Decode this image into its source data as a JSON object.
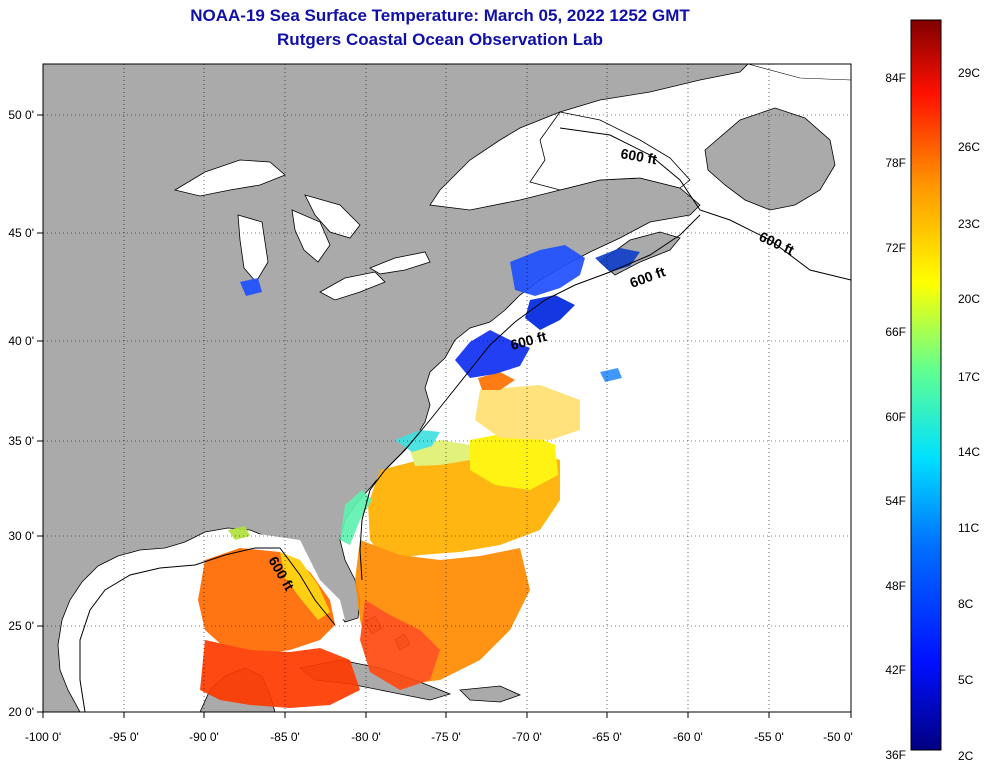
{
  "title": "NOAA-19 Sea Surface Temperature:  March 05, 2022 1252 GMT",
  "subtitle": "Rutgers Coastal Ocean Observation Lab",
  "map": {
    "lon_labels": [
      "-100 0'",
      "-95 0'",
      "-90 0'",
      "-85 0'",
      "-80 0'",
      "-75 0'",
      "-70 0'",
      "-65 0'",
      "-60 0'",
      "-55 0'",
      "-50 0'"
    ],
    "lat_labels": [
      "20 0'",
      "25 0'",
      "30 0'",
      "35 0'",
      "40 0'",
      "45 0'",
      "50 0'"
    ],
    "isobath_labels": [
      "600 ft",
      "600 ft",
      "600 ft",
      "600 ft",
      "600 ft"
    ],
    "colors": {
      "land": "#aaaaaa",
      "ocean": "#ffffff"
    }
  },
  "colorbar": {
    "fahrenheit": [
      "84F",
      "78F",
      "72F",
      "66F",
      "60F",
      "54F",
      "48F",
      "42F",
      "36F"
    ],
    "celsius": [
      "29C",
      "26C",
      "23C",
      "20C",
      "17C",
      "14C",
      "11C",
      "8C",
      "5C",
      "2C"
    ]
  }
}
